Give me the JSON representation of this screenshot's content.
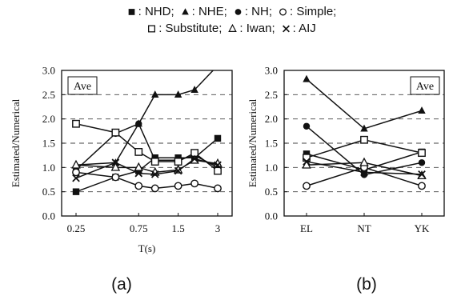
{
  "legend": {
    "lines": [
      [
        {
          "symbol": "filled-square",
          "label": ": NHD;"
        },
        {
          "symbol": "filled-triangle",
          "label": ": NHE;"
        },
        {
          "symbol": "filled-circle",
          "label": ": NH;"
        },
        {
          "symbol": "open-circle",
          "label": ": Simple;"
        }
      ],
      [
        {
          "symbol": "open-square",
          "label": ": Substitute;"
        },
        {
          "symbol": "open-triangle",
          "label": ": Iwan;"
        },
        {
          "symbol": "cross",
          "label": ": AIJ"
        }
      ]
    ]
  },
  "chart_data": [
    {
      "type": "line",
      "panel_label": "(a)",
      "annotation": "Ave",
      "xlabel": "T(s)",
      "ylabel": "Estimated/Numerical",
      "x": [
        0.25,
        0.5,
        0.75,
        1.0,
        1.5,
        2.0,
        3.0
      ],
      "x_tick_labels": [
        {
          "x": 0.25,
          "label": "0.25"
        },
        {
          "x": 0.75,
          "label": "0.75"
        },
        {
          "x": 1.5,
          "label": "1.5"
        },
        {
          "x": 3.0,
          "label": "3"
        }
      ],
      "ylim": [
        0,
        3
      ],
      "y_ticks": [
        "0.0",
        "0.5",
        "1.0",
        "1.5",
        "2.0",
        "2.5",
        "3.0"
      ],
      "grid": "horizontal dashed",
      "series": [
        {
          "name": "NHD",
          "marker": "filled-square",
          "values": [
            0.5,
            0.8,
            0.93,
            1.2,
            1.2,
            1.2,
            1.6
          ]
        },
        {
          "name": "NHE",
          "marker": "filled-triangle",
          "values": [
            1.05,
            1.1,
            1.9,
            2.5,
            2.5,
            2.6,
            3.1
          ]
        },
        {
          "name": "NH",
          "marker": "filled-circle",
          "values": [
            0.95,
            1.7,
            1.9,
            1.15,
            1.15,
            1.25,
            1.0
          ]
        },
        {
          "name": "Simple",
          "marker": "open-circle",
          "values": [
            0.9,
            0.8,
            0.62,
            0.57,
            0.62,
            0.67,
            0.57
          ]
        },
        {
          "name": "Substitute",
          "marker": "open-square",
          "values": [
            1.9,
            1.72,
            1.32,
            1.12,
            1.12,
            1.3,
            0.93
          ]
        },
        {
          "name": "Iwan",
          "marker": "open-triangle",
          "values": [
            1.05,
            1.0,
            1.0,
            0.9,
            0.95,
            1.15,
            1.08
          ]
        },
        {
          "name": "AIJ",
          "marker": "cross",
          "values": [
            0.78,
            1.1,
            0.88,
            0.86,
            0.93,
            1.18,
            1.05
          ]
        }
      ]
    },
    {
      "type": "line",
      "panel_label": "(b)",
      "annotation": "Ave",
      "xlabel": "",
      "ylabel": "Estimated/Numerical",
      "categories": [
        "EL",
        "NT",
        "YK"
      ],
      "ylim": [
        0,
        3
      ],
      "y_ticks": [
        "0.0",
        "0.5",
        "1.0",
        "1.5",
        "2.0",
        "2.5",
        "3.0"
      ],
      "grid": "horizontal dashed",
      "series": [
        {
          "name": "NHD",
          "marker": "filled-square",
          "values": [
            1.28,
            0.95,
            1.32
          ]
        },
        {
          "name": "NHE",
          "marker": "filled-triangle",
          "values": [
            2.82,
            1.8,
            2.17
          ]
        },
        {
          "name": "NH",
          "marker": "filled-circle",
          "values": [
            1.85,
            0.85,
            1.1
          ]
        },
        {
          "name": "Simple",
          "marker": "open-circle",
          "values": [
            0.62,
            1.0,
            0.62
          ]
        },
        {
          "name": "Substitute",
          "marker": "open-square",
          "values": [
            1.2,
            1.57,
            1.3
          ]
        },
        {
          "name": "Iwan",
          "marker": "open-triangle",
          "values": [
            1.05,
            1.1,
            0.83
          ]
        },
        {
          "name": "AIJ",
          "marker": "cross",
          "values": [
            1.12,
            0.9,
            0.86
          ]
        }
      ]
    }
  ]
}
